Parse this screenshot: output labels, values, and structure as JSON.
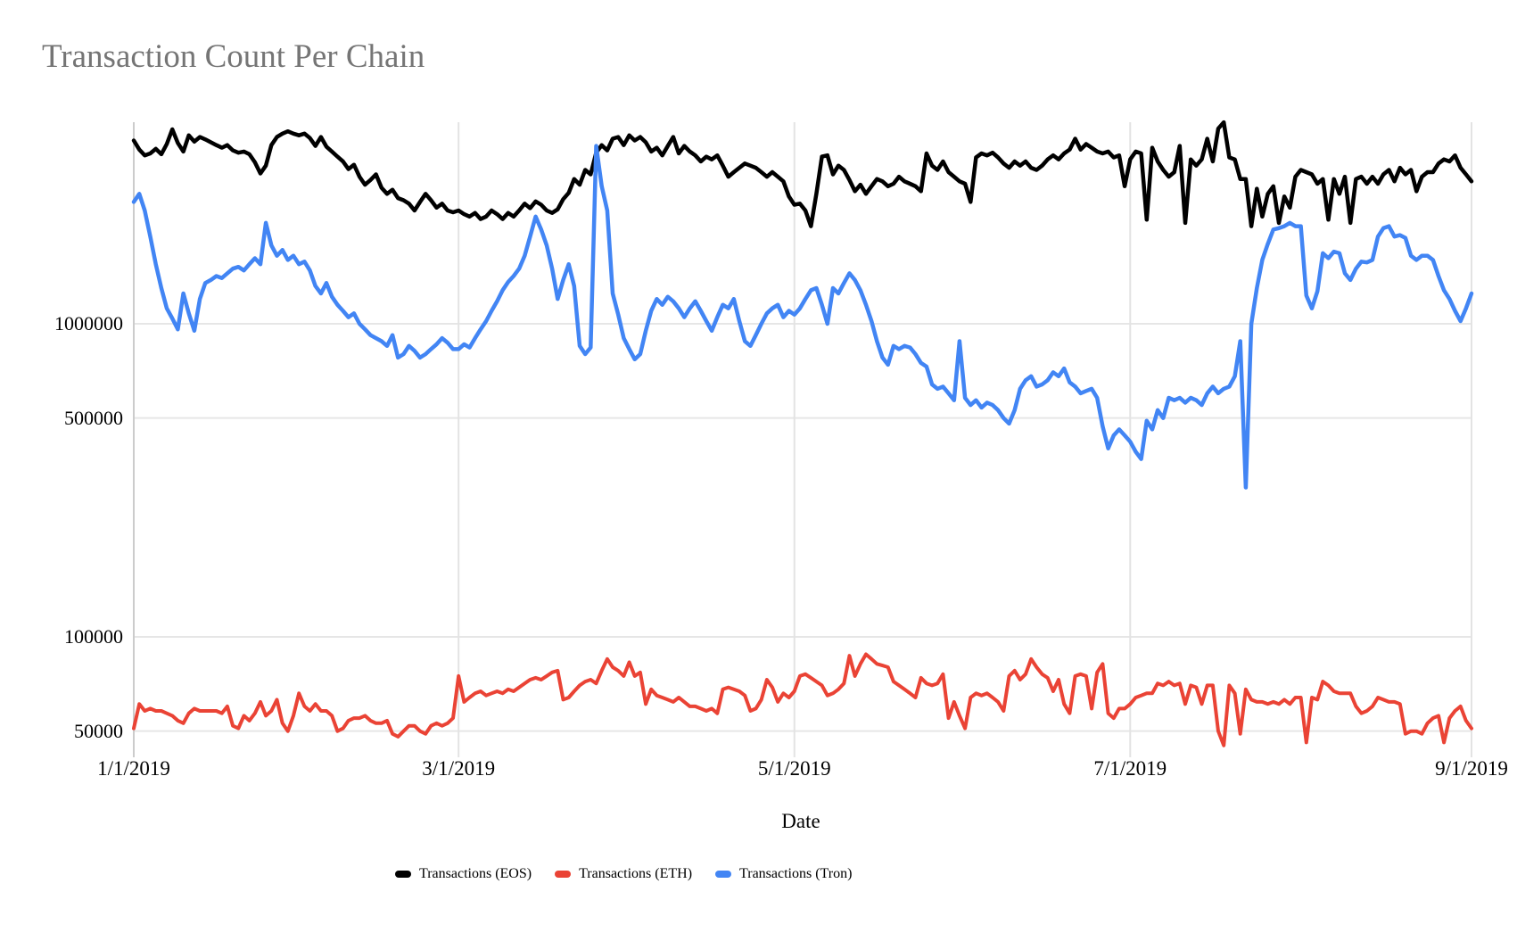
{
  "title": "Transaction Count Per Chain",
  "chart_data": {
    "type": "line",
    "title": "Transaction Count Per Chain",
    "xlabel": "Date",
    "ylabel": "",
    "x_start": "1/1/2019",
    "x_end": "9/1/2019",
    "x_frequency": "daily",
    "points": 244,
    "y_scale": "log",
    "ylim": [
      43000,
      4400000
    ],
    "grid": true,
    "legend_position": "bottom",
    "x_ticks": [
      {
        "label": "1/1/2019",
        "day": 0
      },
      {
        "label": "3/1/2019",
        "day": 59
      },
      {
        "label": "5/1/2019",
        "day": 120
      },
      {
        "label": "7/1/2019",
        "day": 181
      },
      {
        "label": "9/1/2019",
        "day": 243
      }
    ],
    "y_ticks": [
      {
        "label": "1000000",
        "value": 1000000
      },
      {
        "label": "500000",
        "value": 500000
      },
      {
        "label": "100000",
        "value": 100000
      },
      {
        "label": "50000",
        "value": 50000
      }
    ],
    "series": [
      {
        "name": "Transactions (EOS)",
        "color": "#000000",
        "values": [
          3850000,
          3600000,
          3450000,
          3500000,
          3620000,
          3480000,
          3750000,
          4180000,
          3780000,
          3550000,
          4000000,
          3820000,
          3950000,
          3880000,
          3800000,
          3720000,
          3650000,
          3720000,
          3580000,
          3520000,
          3550000,
          3480000,
          3280000,
          3020000,
          3200000,
          3720000,
          3950000,
          4050000,
          4120000,
          4050000,
          4000000,
          4050000,
          3920000,
          3700000,
          3950000,
          3680000,
          3550000,
          3420000,
          3300000,
          3120000,
          3220000,
          2950000,
          2780000,
          2880000,
          3000000,
          2720000,
          2600000,
          2680000,
          2520000,
          2480000,
          2420000,
          2300000,
          2450000,
          2600000,
          2480000,
          2350000,
          2420000,
          2300000,
          2270000,
          2300000,
          2240000,
          2200000,
          2260000,
          2160000,
          2200000,
          2300000,
          2240000,
          2160000,
          2260000,
          2200000,
          2300000,
          2420000,
          2340000,
          2460000,
          2400000,
          2300000,
          2260000,
          2320000,
          2500000,
          2620000,
          2900000,
          2780000,
          3100000,
          3000000,
          3520000,
          3720000,
          3580000,
          3900000,
          3950000,
          3720000,
          4000000,
          3850000,
          3950000,
          3800000,
          3550000,
          3650000,
          3450000,
          3700000,
          3950000,
          3500000,
          3700000,
          3550000,
          3450000,
          3300000,
          3420000,
          3350000,
          3450000,
          3200000,
          2950000,
          3050000,
          3150000,
          3250000,
          3200000,
          3150000,
          3050000,
          2950000,
          3050000,
          2950000,
          2850000,
          2550000,
          2400000,
          2420000,
          2300000,
          2050000,
          2600000,
          3420000,
          3450000,
          3000000,
          3200000,
          3100000,
          2880000,
          2650000,
          2780000,
          2600000,
          2750000,
          2900000,
          2850000,
          2750000,
          2800000,
          2950000,
          2850000,
          2800000,
          2750000,
          2650000,
          3500000,
          3200000,
          3100000,
          3300000,
          3050000,
          2950000,
          2850000,
          2800000,
          2450000,
          3400000,
          3500000,
          3450000,
          3520000,
          3400000,
          3250000,
          3150000,
          3300000,
          3200000,
          3300000,
          3150000,
          3100000,
          3200000,
          3350000,
          3450000,
          3350000,
          3500000,
          3600000,
          3900000,
          3600000,
          3750000,
          3650000,
          3550000,
          3500000,
          3550000,
          3400000,
          3450000,
          2750000,
          3350000,
          3550000,
          3500000,
          2150000,
          3650000,
          3300000,
          3100000,
          2950000,
          3050000,
          3700000,
          2100000,
          3350000,
          3200000,
          3350000,
          3900000,
          3300000,
          4200000,
          4400000,
          3400000,
          3350000,
          2900000,
          2900000,
          2050000,
          2700000,
          2200000,
          2600000,
          2750000,
          2100000,
          2550000,
          2350000,
          2950000,
          3100000,
          3050000,
          3000000,
          2800000,
          2900000,
          2150000,
          2900000,
          2600000,
          2950000,
          2100000,
          2900000,
          2950000,
          2800000,
          2950000,
          2800000,
          3000000,
          3100000,
          2850000,
          3150000,
          3000000,
          3100000,
          2650000,
          2950000,
          3050000,
          3050000,
          3250000,
          3350000,
          3300000,
          3450000,
          3150000,
          3000000,
          2850000
        ]
      },
      {
        "name": "Transactions (ETH)",
        "color": "#ea4335",
        "values": [
          51000,
          61000,
          58000,
          59000,
          58000,
          58000,
          57000,
          56000,
          54000,
          53000,
          57000,
          59000,
          58000,
          58000,
          58000,
          58000,
          57000,
          60000,
          52000,
          51000,
          56000,
          54000,
          57000,
          62000,
          56000,
          58000,
          63000,
          53000,
          50000,
          56000,
          66000,
          60000,
          58000,
          61000,
          58000,
          58000,
          56000,
          50000,
          51000,
          54000,
          55000,
          55000,
          56000,
          54000,
          53000,
          53000,
          54000,
          49000,
          48000,
          50000,
          52000,
          52000,
          50000,
          49000,
          52000,
          53000,
          52000,
          53000,
          55000,
          75000,
          62000,
          64000,
          66000,
          67000,
          65000,
          66000,
          67000,
          66000,
          68000,
          67000,
          69000,
          71000,
          73000,
          74000,
          73000,
          75000,
          77000,
          78000,
          63000,
          64000,
          67000,
          70000,
          72000,
          73000,
          71000,
          78000,
          85000,
          80000,
          78000,
          75000,
          83000,
          75000,
          77000,
          61000,
          68000,
          65000,
          64000,
          63000,
          62000,
          64000,
          62000,
          60000,
          60000,
          59000,
          58000,
          59000,
          57000,
          68000,
          69000,
          68000,
          67000,
          65000,
          58000,
          59000,
          63000,
          73000,
          69000,
          62000,
          66000,
          64000,
          67000,
          75000,
          76000,
          74000,
          72000,
          70000,
          65000,
          66000,
          68000,
          71000,
          87000,
          75000,
          82000,
          88000,
          85000,
          82000,
          81000,
          80000,
          72000,
          70000,
          68000,
          66000,
          64000,
          74000,
          71000,
          70000,
          71000,
          76000,
          55000,
          62000,
          56000,
          51000,
          64000,
          66000,
          65000,
          66000,
          64000,
          62000,
          58000,
          75000,
          78000,
          73000,
          76000,
          85000,
          80000,
          76000,
          74000,
          67000,
          73000,
          61000,
          57000,
          75000,
          76000,
          75000,
          59000,
          77000,
          82000,
          57000,
          55000,
          59000,
          59000,
          61000,
          64000,
          65000,
          66000,
          66000,
          71000,
          70000,
          72000,
          70000,
          71000,
          61000,
          70000,
          69000,
          61000,
          70000,
          70000,
          50000,
          45000,
          70000,
          66000,
          49000,
          68000,
          63000,
          62000,
          62000,
          61000,
          62000,
          61000,
          63000,
          61000,
          64000,
          64000,
          46000,
          64000,
          63000,
          72000,
          70000,
          67000,
          66000,
          66000,
          66000,
          60000,
          57000,
          58000,
          60000,
          64000,
          63000,
          62000,
          62000,
          61000,
          49000,
          50000,
          50000,
          49000,
          53000,
          55000,
          56000,
          46000,
          55000,
          58000,
          60000,
          54000,
          51000
        ]
      },
      {
        "name": "Transactions (Tron)",
        "color": "#4285f4",
        "values": [
          2450000,
          2600000,
          2300000,
          1900000,
          1550000,
          1300000,
          1120000,
          1040000,
          960000,
          1250000,
          1080000,
          950000,
          1200000,
          1350000,
          1380000,
          1420000,
          1400000,
          1450000,
          1500000,
          1520000,
          1480000,
          1550000,
          1620000,
          1550000,
          2100000,
          1780000,
          1650000,
          1720000,
          1600000,
          1650000,
          1550000,
          1580000,
          1480000,
          1320000,
          1250000,
          1350000,
          1220000,
          1150000,
          1100000,
          1050000,
          1080000,
          1000000,
          960000,
          920000,
          900000,
          880000,
          850000,
          920000,
          780000,
          800000,
          850000,
          820000,
          780000,
          800000,
          830000,
          860000,
          900000,
          870000,
          830000,
          830000,
          860000,
          840000,
          900000,
          960000,
          1020000,
          1100000,
          1180000,
          1280000,
          1360000,
          1420000,
          1500000,
          1650000,
          1900000,
          2200000,
          2000000,
          1780000,
          1500000,
          1200000,
          1380000,
          1550000,
          1320000,
          850000,
          800000,
          840000,
          3700000,
          2750000,
          2300000,
          1250000,
          1070000,
          900000,
          830000,
          770000,
          800000,
          950000,
          1100000,
          1200000,
          1150000,
          1220000,
          1180000,
          1120000,
          1050000,
          1120000,
          1180000,
          1100000,
          1020000,
          950000,
          1050000,
          1150000,
          1120000,
          1200000,
          1020000,
          880000,
          850000,
          920000,
          1000000,
          1080000,
          1120000,
          1150000,
          1050000,
          1100000,
          1070000,
          1120000,
          1200000,
          1280000,
          1300000,
          1150000,
          1000000,
          1300000,
          1250000,
          1350000,
          1450000,
          1380000,
          1280000,
          1150000,
          1020000,
          880000,
          780000,
          740000,
          850000,
          830000,
          850000,
          840000,
          800000,
          750000,
          730000,
          640000,
          620000,
          630000,
          600000,
          570000,
          880000,
          580000,
          550000,
          570000,
          540000,
          560000,
          550000,
          530000,
          500000,
          480000,
          530000,
          620000,
          660000,
          680000,
          630000,
          640000,
          660000,
          700000,
          680000,
          720000,
          650000,
          630000,
          600000,
          610000,
          620000,
          580000,
          470000,
          400000,
          440000,
          460000,
          440000,
          420000,
          390000,
          370000,
          490000,
          460000,
          530000,
          500000,
          580000,
          570000,
          580000,
          560000,
          580000,
          570000,
          550000,
          600000,
          630000,
          600000,
          620000,
          630000,
          680000,
          880000,
          300000,
          1000000,
          1300000,
          1600000,
          1800000,
          2000000,
          2020000,
          2050000,
          2100000,
          2050000,
          2050000,
          1230000,
          1120000,
          1270000,
          1680000,
          1620000,
          1700000,
          1680000,
          1450000,
          1380000,
          1500000,
          1580000,
          1570000,
          1600000,
          1900000,
          2020000,
          2050000,
          1900000,
          1920000,
          1880000,
          1650000,
          1600000,
          1650000,
          1650000,
          1600000,
          1420000,
          1280000,
          1200000,
          1100000,
          1020000,
          1120000,
          1250000
        ]
      }
    ]
  },
  "x_axis": {
    "title": "Date"
  }
}
